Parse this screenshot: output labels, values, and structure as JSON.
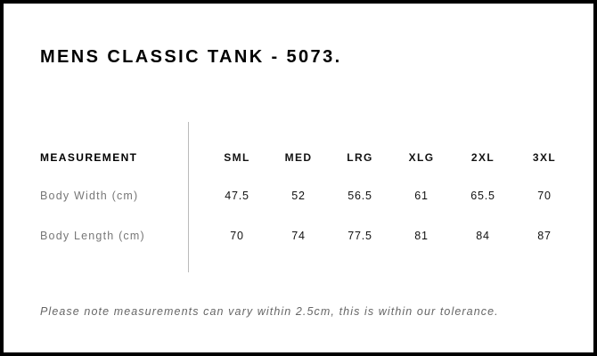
{
  "title": "MENS CLASSIC TANK - 5073.",
  "table": {
    "header_label": "MEASUREMENT",
    "sizes": [
      "SML",
      "MED",
      "LRG",
      "XLG",
      "2XL",
      "3XL"
    ],
    "rows": [
      {
        "label": "Body Width (cm)",
        "values": [
          "47.5",
          "52",
          "56.5",
          "61",
          "65.5",
          "70"
        ]
      },
      {
        "label": "Body Length (cm)",
        "values": [
          "70",
          "74",
          "77.5",
          "81",
          "84",
          "87"
        ]
      }
    ]
  },
  "note": "Please note measurements can vary within 2.5cm, this is within our tolerance."
}
